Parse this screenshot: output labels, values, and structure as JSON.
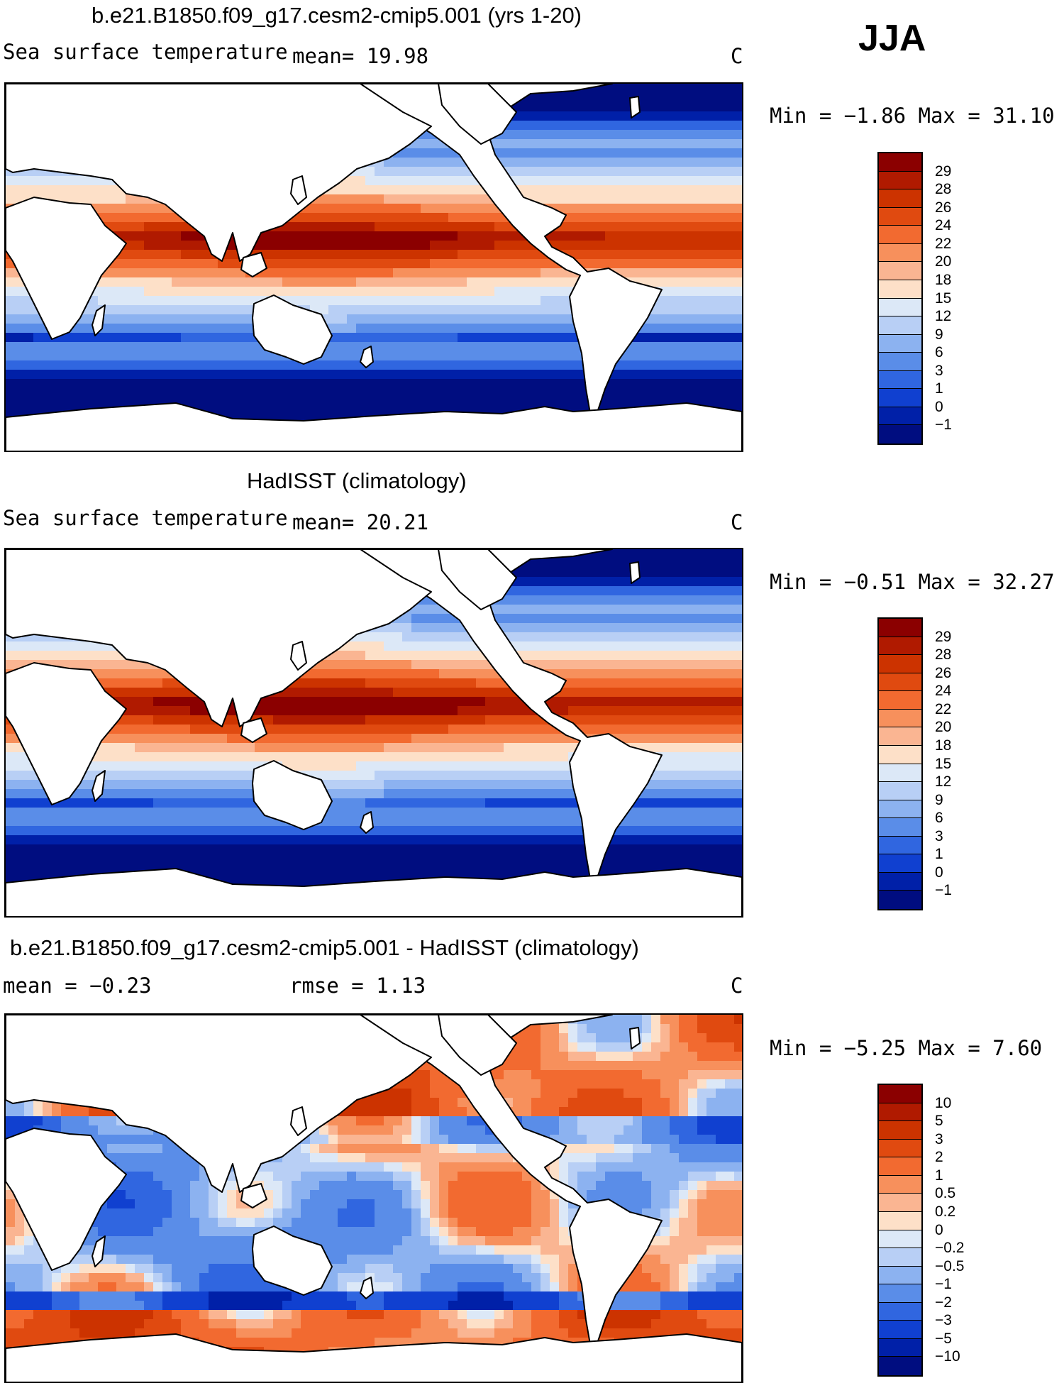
{
  "season": "JJA",
  "panels": [
    {
      "title": "b.e21.B1850.f09_g17.cesm2-cmip5.001 (yrs 1-20)",
      "left_label": "Sea surface temperature",
      "mid_label": "mean=   19.98",
      "units": "C",
      "minmax": "Min =   −1.86 Max =   31.10",
      "colorbar": {
        "labels": [
          "29",
          "28",
          "26",
          "24",
          "22",
          "20",
          "18",
          "15",
          "12",
          "9",
          "6",
          "3",
          "1",
          "0",
          "−1"
        ],
        "colors": [
          "#8b0000",
          "#b01a00",
          "#cc3300",
          "#e04a10",
          "#f26a30",
          "#f7905c",
          "#fab592",
          "#fde0c8",
          "#dce8f7",
          "#b8cff5",
          "#8cb2f0",
          "#5a8de8",
          "#3066e0",
          "#1040d0",
          "#0020a8",
          "#000d80"
        ]
      },
      "map": {
        "type": "sst"
      }
    },
    {
      "title": "HadISST (climatology)",
      "left_label": "Sea surface temperature",
      "mid_label": "mean=   20.21",
      "units": "C",
      "minmax": "Min =   −0.51 Max =   32.27",
      "colorbar": {
        "labels": [
          "29",
          "28",
          "26",
          "24",
          "22",
          "20",
          "18",
          "15",
          "12",
          "9",
          "6",
          "3",
          "1",
          "0",
          "−1"
        ],
        "colors": [
          "#8b0000",
          "#b01a00",
          "#cc3300",
          "#e04a10",
          "#f26a30",
          "#f7905c",
          "#fab592",
          "#fde0c8",
          "#dce8f7",
          "#b8cff5",
          "#8cb2f0",
          "#5a8de8",
          "#3066e0",
          "#1040d0",
          "#0020a8",
          "#000d80"
        ]
      },
      "map": {
        "type": "sst"
      }
    },
    {
      "title": "b.e21.B1850.f09_g17.cesm2-cmip5.001 - HadISST (climatology)",
      "left_label": "mean =   −0.23",
      "mid_label": "rmse =    1.13",
      "units": "C",
      "minmax": "Min =   −5.25 Max =    7.60",
      "colorbar": {
        "labels": [
          "10",
          "5",
          "3",
          "2",
          "1",
          "0.5",
          "0.2",
          "0",
          "−0.2",
          "−0.5",
          "−1",
          "−2",
          "−3",
          "−5",
          "−10"
        ],
        "colors": [
          "#8b0000",
          "#b01a00",
          "#cc3300",
          "#e04a10",
          "#f26a30",
          "#f7905c",
          "#fab592",
          "#fde0c8",
          "#dce8f7",
          "#b8cff5",
          "#8cb2f0",
          "#5a8de8",
          "#3066e0",
          "#1040d0",
          "#0020a8",
          "#000d80"
        ]
      },
      "map": {
        "type": "diff"
      }
    }
  ]
}
